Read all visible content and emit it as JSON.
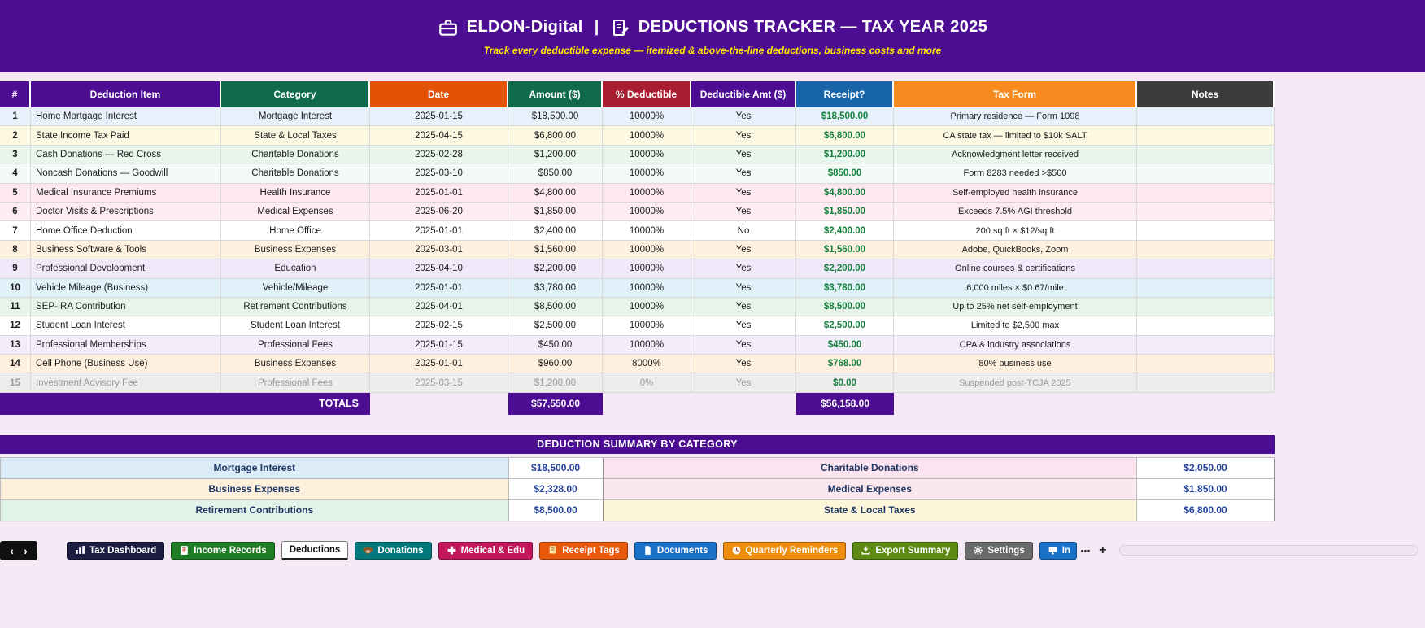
{
  "banner": {
    "brand": "ELDON-Digital",
    "separator": "|",
    "title": "DEDUCTIONS TRACKER — TAX YEAR 2025",
    "subtitle": "Track every deductible expense — itemized & above-the-line deductions, business costs and more",
    "bg_color": "#4c0d93",
    "subtitle_color": "#ffe600"
  },
  "table": {
    "money_color": "#15803d",
    "columns": [
      {
        "label": "#",
        "color": "#4c0d93"
      },
      {
        "label": "Deduction Item",
        "color": "#4c0d93"
      },
      {
        "label": "Category",
        "color": "#0f6b4c"
      },
      {
        "label": "Date",
        "color": "#e25308"
      },
      {
        "label": "Amount ($)",
        "color": "#0f6b4c"
      },
      {
        "label": "% Deductible",
        "color": "#a81e30"
      },
      {
        "label": "Deductible Amt ($)",
        "color": "#4c0d93"
      },
      {
        "label": "Receipt?",
        "color": "#1765a8"
      },
      {
        "label": "Tax Form",
        "color": "#f78a1e"
      },
      {
        "label": "Notes",
        "color": "#3c3c3c"
      }
    ],
    "rows": [
      {
        "num": "1",
        "item": "Home Mortgage Interest",
        "category": "Mortgage Interest",
        "date": "2025-01-15",
        "amount": "$18,500.00",
        "pct": "10000%",
        "deductible": "Yes",
        "receipt": "$18,500.00",
        "tax_form": "Primary residence — Form 1098",
        "notes": "",
        "bg": "#e7f0fb",
        "dimmed": false
      },
      {
        "num": "2",
        "item": "State Income Tax Paid",
        "category": "State & Local Taxes",
        "date": "2025-04-15",
        "amount": "$6,800.00",
        "pct": "10000%",
        "deductible": "Yes",
        "receipt": "$6,800.00",
        "tax_form": "CA state tax — limited to $10k SALT",
        "notes": "",
        "bg": "#fdf8e2",
        "dimmed": false
      },
      {
        "num": "3",
        "item": "Cash Donations — Red Cross",
        "category": "Charitable Donations",
        "date": "2025-02-28",
        "amount": "$1,200.00",
        "pct": "10000%",
        "deductible": "Yes",
        "receipt": "$1,200.00",
        "tax_form": "Acknowledgment letter received",
        "notes": "",
        "bg": "#e8f5ec",
        "dimmed": false
      },
      {
        "num": "4",
        "item": "Noncash Donations — Goodwill",
        "category": "Charitable Donations",
        "date": "2025-03-10",
        "amount": "$850.00",
        "pct": "10000%",
        "deductible": "Yes",
        "receipt": "$850.00",
        "tax_form": "Form 8283 needed >$500",
        "notes": "",
        "bg": "#f3faf5",
        "dimmed": false
      },
      {
        "num": "5",
        "item": "Medical Insurance Premiums",
        "category": "Health Insurance",
        "date": "2025-01-01",
        "amount": "$4,800.00",
        "pct": "10000%",
        "deductible": "Yes",
        "receipt": "$4,800.00",
        "tax_form": "Self-employed health insurance",
        "notes": "",
        "bg": "#fde9ef",
        "dimmed": false
      },
      {
        "num": "6",
        "item": "Doctor Visits & Prescriptions",
        "category": "Medical Expenses",
        "date": "2025-06-20",
        "amount": "$1,850.00",
        "pct": "10000%",
        "deductible": "Yes",
        "receipt": "$1,850.00",
        "tax_form": "Exceeds 7.5% AGI threshold",
        "notes": "",
        "bg": "#fdecf1",
        "dimmed": false
      },
      {
        "num": "7",
        "item": "Home Office Deduction",
        "category": "Home Office",
        "date": "2025-01-01",
        "amount": "$2,400.00",
        "pct": "10000%",
        "deductible": "No",
        "receipt": "$2,400.00",
        "tax_form": "200 sq ft × $12/sq ft",
        "notes": "",
        "bg": "#ffffff",
        "dimmed": false
      },
      {
        "num": "8",
        "item": "Business Software & Tools",
        "category": "Business Expenses",
        "date": "2025-03-01",
        "amount": "$1,560.00",
        "pct": "10000%",
        "deductible": "Yes",
        "receipt": "$1,560.00",
        "tax_form": "Adobe, QuickBooks, Zoom",
        "notes": "",
        "bg": "#fdf0df",
        "dimmed": false
      },
      {
        "num": "9",
        "item": "Professional Development",
        "category": "Education",
        "date": "2025-04-10",
        "amount": "$2,200.00",
        "pct": "10000%",
        "deductible": "Yes",
        "receipt": "$2,200.00",
        "tax_form": "Online courses & certifications",
        "notes": "",
        "bg": "#f0e9fa",
        "dimmed": false
      },
      {
        "num": "10",
        "item": "Vehicle Mileage (Business)",
        "category": "Vehicle/Mileage",
        "date": "2025-01-01",
        "amount": "$3,780.00",
        "pct": "10000%",
        "deductible": "Yes",
        "receipt": "$3,780.00",
        "tax_form": "6,000 miles × $0.67/mile",
        "notes": "",
        "bg": "#e0f1f9",
        "dimmed": false
      },
      {
        "num": "11",
        "item": "SEP-IRA Contribution",
        "category": "Retirement Contributions",
        "date": "2025-04-01",
        "amount": "$8,500.00",
        "pct": "10000%",
        "deductible": "Yes",
        "receipt": "$8,500.00",
        "tax_form": "Up to 25% net self-employment",
        "notes": "",
        "bg": "#e6f4ea",
        "dimmed": false
      },
      {
        "num": "12",
        "item": "Student Loan Interest",
        "category": "Student Loan Interest",
        "date": "2025-02-15",
        "amount": "$2,500.00",
        "pct": "10000%",
        "deductible": "Yes",
        "receipt": "$2,500.00",
        "tax_form": "Limited to $2,500 max",
        "notes": "",
        "bg": "#ffffff",
        "dimmed": false
      },
      {
        "num": "13",
        "item": "Professional Memberships",
        "category": "Professional Fees",
        "date": "2025-01-15",
        "amount": "$450.00",
        "pct": "10000%",
        "deductible": "Yes",
        "receipt": "$450.00",
        "tax_form": "CPA & industry associations",
        "notes": "",
        "bg": "#f3edfa",
        "dimmed": false
      },
      {
        "num": "14",
        "item": "Cell Phone (Business Use)",
        "category": "Business Expenses",
        "date": "2025-01-01",
        "amount": "$960.00",
        "pct": "8000%",
        "deductible": "Yes",
        "receipt": "$768.00",
        "tax_form": "80% business use",
        "notes": "",
        "bg": "#fdf0df",
        "dimmed": false
      },
      {
        "num": "15",
        "item": "Investment Advisory Fee",
        "category": "Professional Fees",
        "date": "2025-03-15",
        "amount": "$1,200.00",
        "pct": "0%",
        "deductible": "Yes",
        "receipt": "$0.00",
        "tax_form": "Suspended post-TCJA 2025",
        "notes": "",
        "bg": "#ededed",
        "dimmed": true
      }
    ],
    "totals": {
      "label": "TOTALS",
      "amount_total": "$57,550.00",
      "receipt_total": "$56,158.00"
    }
  },
  "summary": {
    "title": "DEDUCTION SUMMARY BY CATEGORY",
    "rows": [
      {
        "left_label": "Mortgage Interest",
        "left_value": "$18,500.00",
        "left_bg": "#dcebf8",
        "right_label": "Charitable Donations",
        "right_value": "$2,050.00",
        "right_bg": "#fbe3ef"
      },
      {
        "left_label": "Business Expenses",
        "left_value": "$2,328.00",
        "left_bg": "#fdf0dd",
        "right_label": "Medical Expenses",
        "right_value": "$1,850.00",
        "right_bg": "#fbe7ee"
      },
      {
        "left_label": "Retirement Contributions",
        "left_value": "$8,500.00",
        "left_bg": "#e2f3e9",
        "right_label": "State & Local Taxes",
        "right_value": "$6,800.00",
        "right_bg": "#fdf6d9"
      }
    ]
  },
  "tabbar": {
    "nav_left": "‹",
    "nav_right": "›",
    "overflow": "•••",
    "add": "+",
    "tabs": [
      {
        "label": "Tax Dashboard",
        "bg": "#1d1c42",
        "fg": "#ffffff",
        "icon": "bar-chart",
        "active": false,
        "truncated": false
      },
      {
        "label": "Income Records",
        "bg": "#1f7d26",
        "fg": "#ffffff",
        "icon": "ledger",
        "active": false,
        "truncated": false
      },
      {
        "label": "Deductions",
        "bg": "#ffffff",
        "fg": "#111111",
        "icon": "",
        "active": true,
        "truncated": false
      },
      {
        "label": "Donations",
        "bg": "#00787c",
        "fg": "#ffffff",
        "icon": "monkey",
        "active": false,
        "truncated": false
      },
      {
        "label": "Medical & Edu",
        "bg": "#c2185b",
        "fg": "#ffffff",
        "icon": "medical-cross",
        "active": false,
        "truncated": false
      },
      {
        "label": "Receipt Tags",
        "bg": "#e8590c",
        "fg": "#ffffff",
        "icon": "receipt",
        "active": false,
        "truncated": false
      },
      {
        "label": "Documents",
        "bg": "#1a72c8",
        "fg": "#ffffff",
        "icon": "document",
        "active": false,
        "truncated": false
      },
      {
        "label": "Quarterly Reminders",
        "bg": "#ef8d0e",
        "fg": "#ffffff",
        "icon": "clock",
        "active": false,
        "truncated": false
      },
      {
        "label": "Export Summary",
        "bg": "#5c8a13",
        "fg": "#ffffff",
        "icon": "export",
        "active": false,
        "truncated": false
      },
      {
        "label": "Settings",
        "bg": "#6a6a6a",
        "fg": "#ffffff",
        "icon": "gear",
        "active": false,
        "truncated": false
      },
      {
        "label": "In",
        "bg": "#1a72c8",
        "fg": "#ffffff",
        "icon": "monitor",
        "active": false,
        "truncated": true
      }
    ]
  }
}
